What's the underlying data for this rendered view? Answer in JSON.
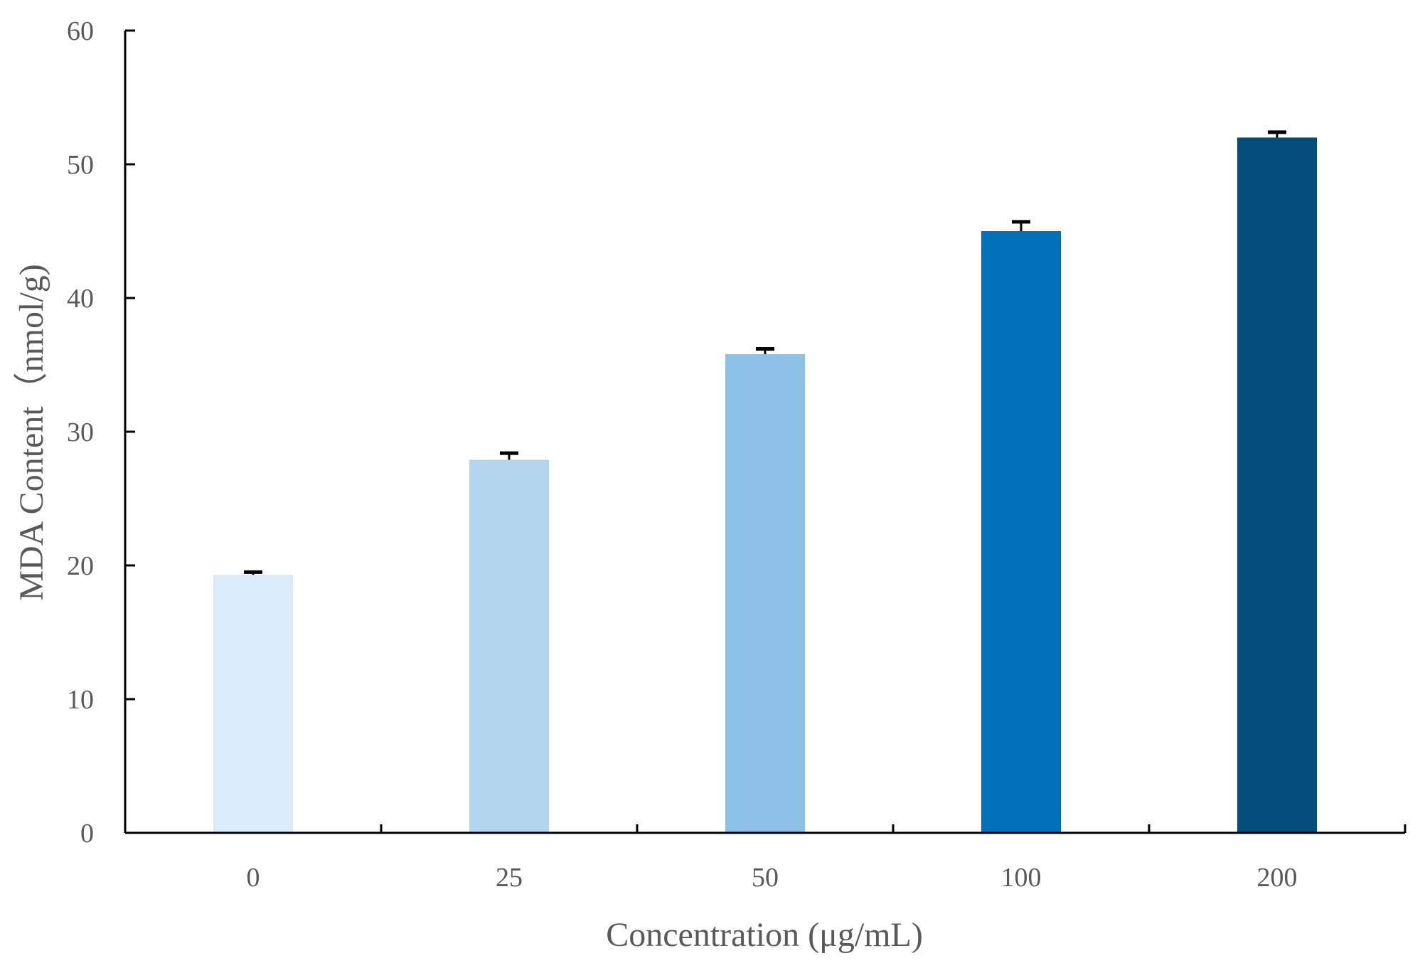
{
  "chart_data": {
    "type": "bar",
    "title": "",
    "xlabel": "Concentration (μg/mL)",
    "ylabel": "MDA Content（nmol/g)",
    "categories": [
      "0",
      "25",
      "50",
      "100",
      "200"
    ],
    "values": [
      19.3,
      27.9,
      35.8,
      45.0,
      52.0
    ],
    "errors": [
      0.2,
      0.5,
      0.4,
      0.7,
      0.4
    ],
    "bar_colors": [
      "#dbeaf7",
      "#b3d6ef",
      "#8dc2e7",
      "#0070b8",
      "#024d79"
    ],
    "ylim": [
      0,
      60
    ],
    "yticks": [
      "0",
      "10",
      "20",
      "30",
      "40",
      "50",
      "60"
    ],
    "grid": false,
    "legend": "none"
  }
}
